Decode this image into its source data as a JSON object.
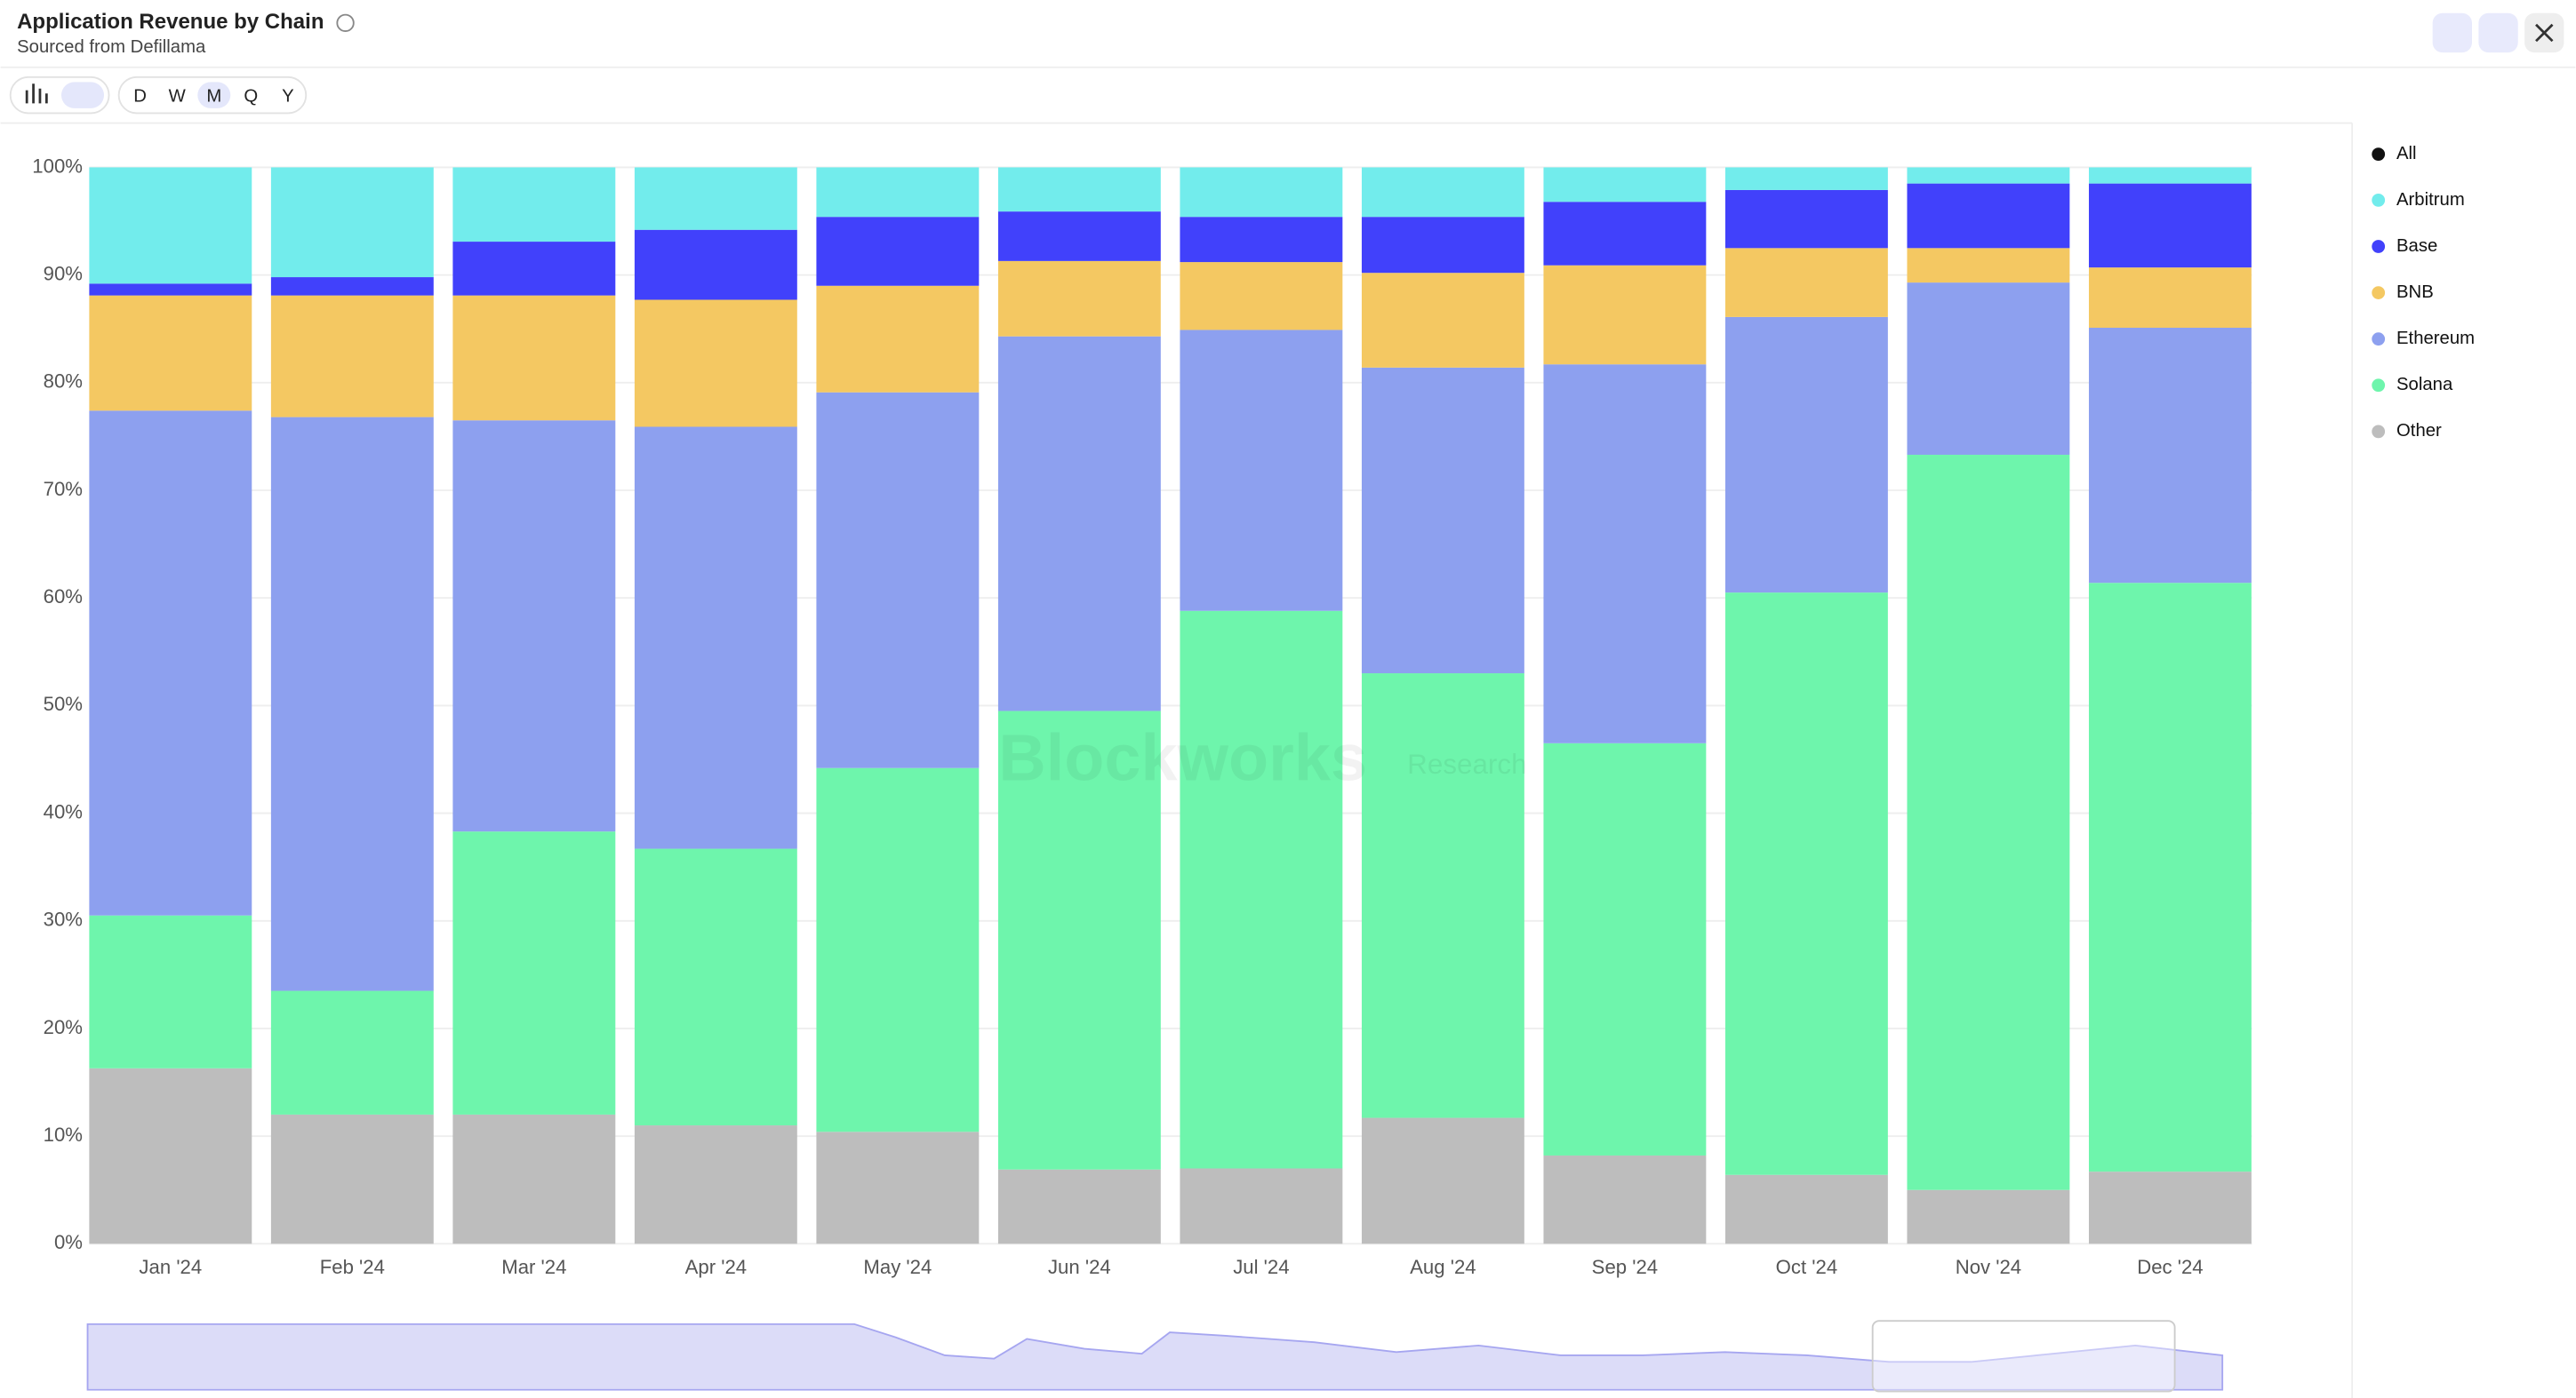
{
  "chart_data": {
    "type": "stacked-bar-percent",
    "title": "Application Revenue by Chain",
    "subtitle": "Sourced from Defillama",
    "intervals": [
      "D",
      "W",
      "M",
      "Q",
      "Y"
    ],
    "selected_interval": "M",
    "watermark": [
      "Blockworks",
      "Research"
    ],
    "legend_toggle": "All",
    "categories": [
      "Jan '24",
      "Feb '24",
      "Mar '24",
      "Apr '24",
      "May '24",
      "Jun '24",
      "Jul '24",
      "Aug '24",
      "Sep '24",
      "Oct '24",
      "Nov '24",
      "Dec '24"
    ],
    "series": [
      {
        "name": "Arbitrum",
        "color": "#72ecec",
        "values": [
          10.8,
          10.2,
          6.9,
          5.8,
          4.6,
          4.1,
          4.6,
          4.6,
          3.2,
          2.1,
          1.5,
          1.5
        ]
      },
      {
        "name": "Base",
        "color": "#4141fb",
        "values": [
          1.1,
          1.7,
          5.0,
          6.5,
          6.4,
          4.6,
          4.2,
          5.2,
          5.9,
          5.4,
          6.0,
          7.8
        ]
      },
      {
        "name": "BNB",
        "color": "#f4c862",
        "values": [
          10.7,
          11.3,
          11.6,
          11.8,
          9.9,
          7.0,
          6.3,
          8.8,
          9.2,
          6.4,
          3.2,
          5.6
        ]
      },
      {
        "name": "Ethereum",
        "color": "#8da0ef",
        "values": [
          46.9,
          53.3,
          38.2,
          39.2,
          34.9,
          34.8,
          26.1,
          28.4,
          35.2,
          25.6,
          16.0,
          23.7
        ]
      },
      {
        "name": "Solana",
        "color": "#6ef5ac",
        "values": [
          14.2,
          11.5,
          26.3,
          25.7,
          33.8,
          42.6,
          51.8,
          41.3,
          38.3,
          54.1,
          68.3,
          54.7
        ]
      },
      {
        "name": "Other",
        "color": "#bdbdbd",
        "values": [
          16.3,
          12.0,
          12.0,
          11.0,
          10.4,
          6.9,
          7.0,
          11.7,
          8.2,
          6.4,
          5.0,
          6.7
        ]
      }
    ],
    "ylim": [
      0,
      100
    ],
    "yticks": [
      {
        "value": 0,
        "label": "0%"
      },
      {
        "value": 10,
        "label": "10%"
      },
      {
        "value": 20,
        "label": "20%"
      },
      {
        "value": 30,
        "label": "30%"
      },
      {
        "value": 40,
        "label": "40%"
      },
      {
        "value": 50,
        "label": "50%"
      },
      {
        "value": 60,
        "label": "60%"
      },
      {
        "value": 70,
        "label": "70%"
      },
      {
        "value": 80,
        "label": "80%"
      },
      {
        "value": 90,
        "label": "90%"
      },
      {
        "value": 100,
        "label": "100%"
      }
    ],
    "grid": true
  }
}
